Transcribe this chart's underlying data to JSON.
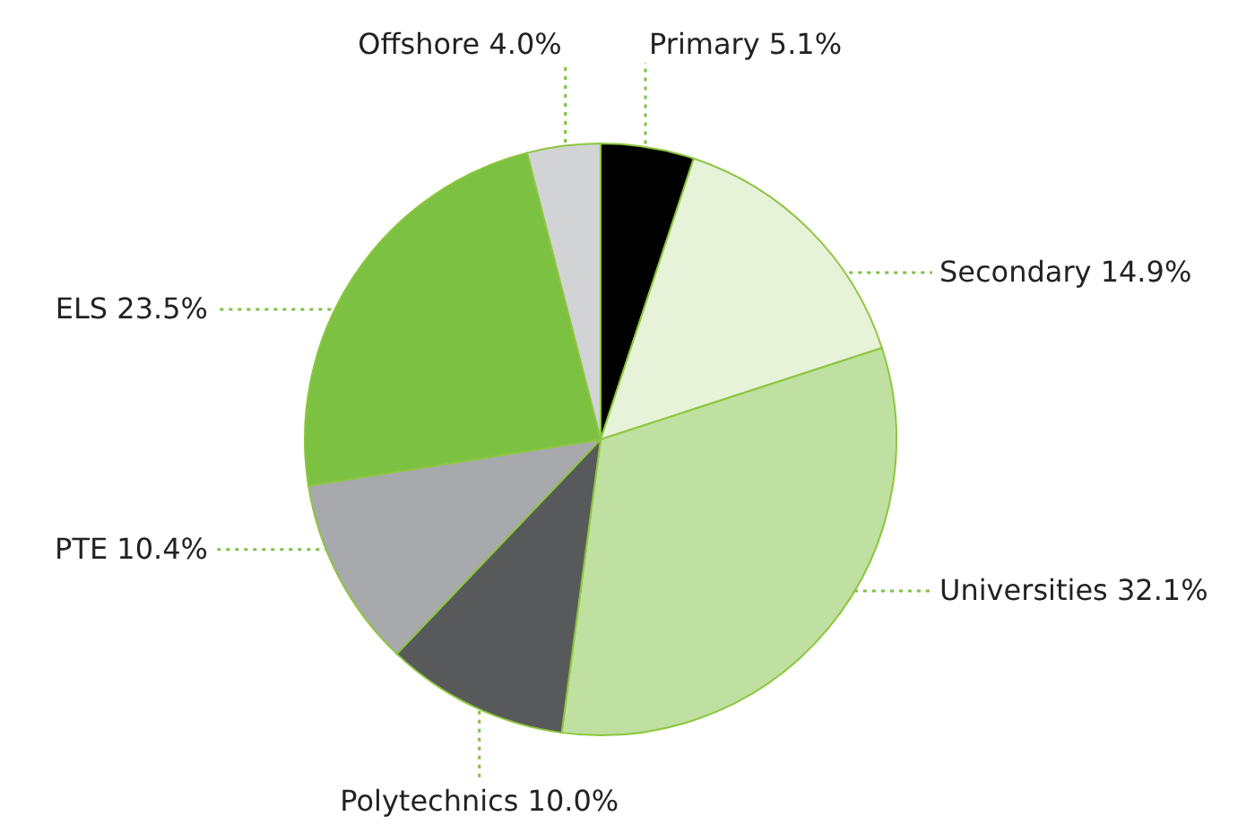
{
  "chart_data": {
    "type": "pie",
    "categories": [
      "Primary",
      "Secondary",
      "Universities",
      "Polytechnics",
      "PTE",
      "ELS",
      "Offshore"
    ],
    "values": [
      5.1,
      14.9,
      32.1,
      10.0,
      10.4,
      23.5,
      4.0
    ],
    "value_labels": [
      "5.1%",
      "14.9%",
      "32.1%",
      "10.0%",
      "10.4%",
      "23.5%",
      "4.0%"
    ],
    "colors": [
      "#000000",
      "#e6f3d8",
      "#bfe0a0",
      "#58595b",
      "#a7a9ac",
      "#7cc142",
      "#d1d3d4"
    ]
  }
}
